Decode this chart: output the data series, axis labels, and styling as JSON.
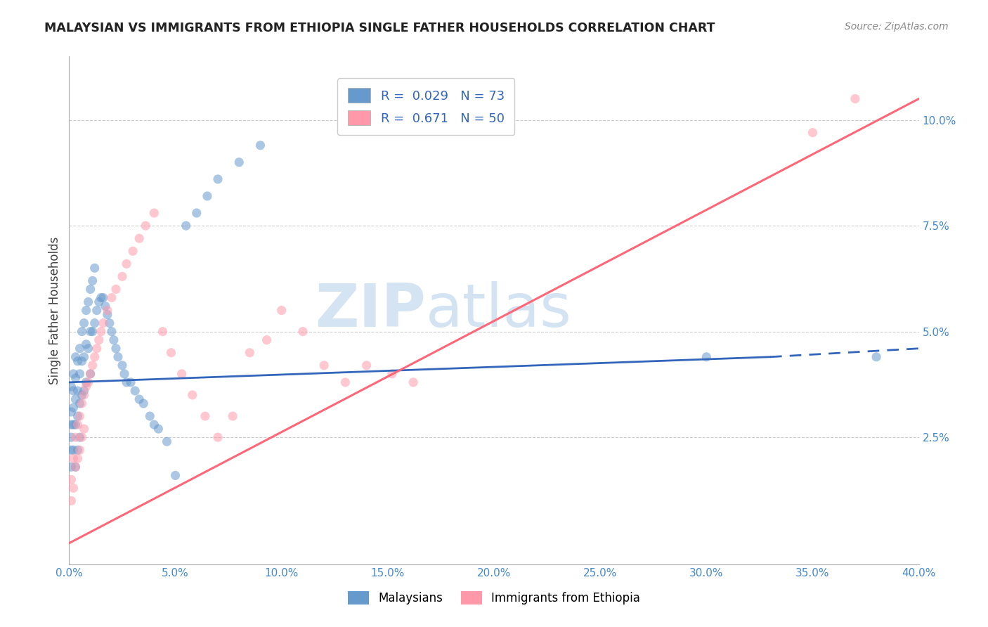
{
  "title": "MALAYSIAN VS IMMIGRANTS FROM ETHIOPIA SINGLE FATHER HOUSEHOLDS CORRELATION CHART",
  "source": "Source: ZipAtlas.com",
  "ylabel": "Single Father Households",
  "xlim": [
    0.0,
    0.4
  ],
  "ylim": [
    -0.005,
    0.115
  ],
  "yticks": [
    0.025,
    0.05,
    0.075,
    0.1
  ],
  "ytick_labels": [
    "2.5%",
    "5.0%",
    "7.5%",
    "10.0%"
  ],
  "xticks": [
    0.0,
    0.05,
    0.1,
    0.15,
    0.2,
    0.25,
    0.3,
    0.35,
    0.4
  ],
  "xtick_labels": [
    "0.0%",
    "5.0%",
    "10.0%",
    "15.0%",
    "20.0%",
    "25.0%",
    "30.0%",
    "35.0%",
    "40.0%"
  ],
  "legend_label1": "Malaysians",
  "legend_label2": "Immigrants from Ethiopia",
  "r1": 0.029,
  "n1": 73,
  "r2": 0.671,
  "n2": 50,
  "color_blue": "#6699CC",
  "color_pink": "#FF99AA",
  "line_blue": "#3366BB",
  "line_pink": "#FF6677",
  "watermark_zip": "ZIP",
  "watermark_atlas": "atlas",
  "blue_line_solid_end": 0.33,
  "blue_line_start_y": 0.038,
  "blue_line_end_y": 0.044,
  "blue_line_dash_end_y": 0.046,
  "pink_line_start_x": 0.0,
  "pink_line_start_y": 0.0,
  "pink_line_end_x": 0.4,
  "pink_line_end_y": 0.105,
  "malaysian_x": [
    0.001,
    0.001,
    0.001,
    0.001,
    0.001,
    0.001,
    0.002,
    0.002,
    0.002,
    0.002,
    0.002,
    0.003,
    0.003,
    0.003,
    0.003,
    0.003,
    0.004,
    0.004,
    0.004,
    0.004,
    0.005,
    0.005,
    0.005,
    0.005,
    0.006,
    0.006,
    0.006,
    0.007,
    0.007,
    0.007,
    0.008,
    0.008,
    0.008,
    0.009,
    0.009,
    0.01,
    0.01,
    0.01,
    0.011,
    0.011,
    0.012,
    0.012,
    0.013,
    0.014,
    0.015,
    0.016,
    0.017,
    0.018,
    0.019,
    0.02,
    0.021,
    0.022,
    0.023,
    0.025,
    0.026,
    0.027,
    0.029,
    0.031,
    0.033,
    0.035,
    0.038,
    0.04,
    0.042,
    0.046,
    0.05,
    0.055,
    0.06,
    0.065,
    0.07,
    0.08,
    0.09,
    0.3,
    0.38
  ],
  "malaysian_y": [
    0.037,
    0.031,
    0.028,
    0.025,
    0.022,
    0.018,
    0.04,
    0.036,
    0.032,
    0.028,
    0.022,
    0.044,
    0.039,
    0.034,
    0.028,
    0.018,
    0.043,
    0.036,
    0.03,
    0.022,
    0.046,
    0.04,
    0.033,
    0.025,
    0.05,
    0.043,
    0.035,
    0.052,
    0.044,
    0.036,
    0.055,
    0.047,
    0.038,
    0.057,
    0.046,
    0.06,
    0.05,
    0.04,
    0.062,
    0.05,
    0.065,
    0.052,
    0.055,
    0.057,
    0.058,
    0.058,
    0.056,
    0.054,
    0.052,
    0.05,
    0.048,
    0.046,
    0.044,
    0.042,
    0.04,
    0.038,
    0.038,
    0.036,
    0.034,
    0.033,
    0.03,
    0.028,
    0.027,
    0.024,
    0.016,
    0.075,
    0.078,
    0.082,
    0.086,
    0.09,
    0.094,
    0.044,
    0.044
  ],
  "ethiopia_x": [
    0.001,
    0.001,
    0.002,
    0.002,
    0.003,
    0.003,
    0.004,
    0.004,
    0.005,
    0.005,
    0.006,
    0.006,
    0.007,
    0.007,
    0.008,
    0.009,
    0.01,
    0.011,
    0.012,
    0.013,
    0.014,
    0.015,
    0.016,
    0.018,
    0.02,
    0.022,
    0.025,
    0.027,
    0.03,
    0.033,
    0.036,
    0.04,
    0.044,
    0.048,
    0.053,
    0.058,
    0.064,
    0.07,
    0.077,
    0.085,
    0.093,
    0.1,
    0.11,
    0.12,
    0.13,
    0.14,
    0.152,
    0.162,
    0.35,
    0.37
  ],
  "ethiopia_y": [
    0.015,
    0.01,
    0.02,
    0.013,
    0.025,
    0.018,
    0.028,
    0.02,
    0.03,
    0.022,
    0.033,
    0.025,
    0.035,
    0.027,
    0.037,
    0.038,
    0.04,
    0.042,
    0.044,
    0.046,
    0.048,
    0.05,
    0.052,
    0.055,
    0.058,
    0.06,
    0.063,
    0.066,
    0.069,
    0.072,
    0.075,
    0.078,
    0.05,
    0.045,
    0.04,
    0.035,
    0.03,
    0.025,
    0.03,
    0.045,
    0.048,
    0.055,
    0.05,
    0.042,
    0.038,
    0.042,
    0.04,
    0.038,
    0.097,
    0.105
  ]
}
